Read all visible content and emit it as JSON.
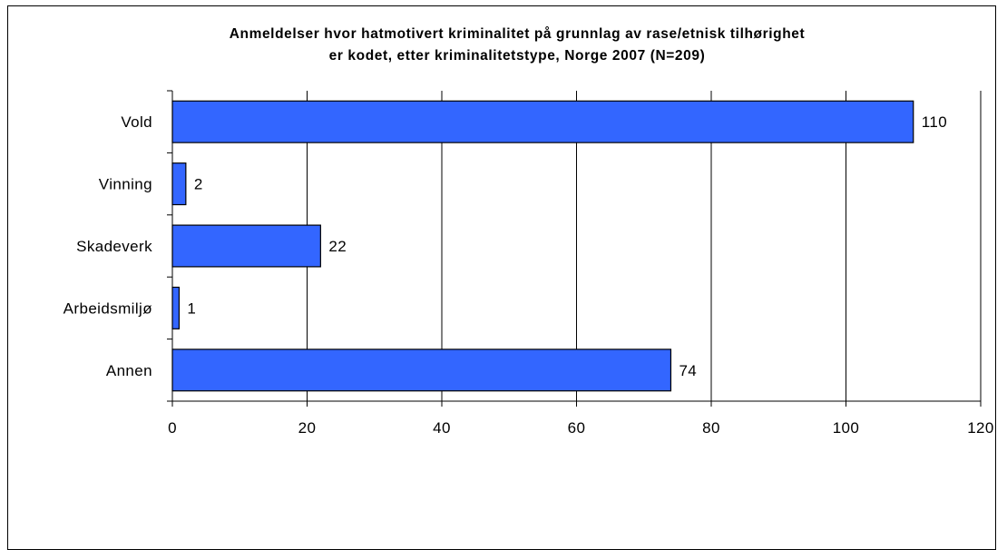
{
  "chart_data": {
    "type": "bar",
    "orientation": "horizontal",
    "title_lines": [
      "Anmeldelser hvor hatmotivert kriminalitet på grunnlag av rase/etnisk tilhørighet",
      "er kodet, etter kriminalitetstype, Norge 2007 (N=209)"
    ],
    "categories": [
      "Vold",
      "Vinning",
      "Skadeverk",
      "Arbeidsmiljø",
      "Annen"
    ],
    "values": [
      110,
      2,
      22,
      1,
      74
    ],
    "value_labels": [
      "110",
      "2",
      "22",
      "1",
      "74"
    ],
    "xlim": [
      0,
      120
    ],
    "xticks": [
      0,
      20,
      40,
      60,
      80,
      100,
      120
    ],
    "xtick_labels": [
      "0",
      "20",
      "40",
      "60",
      "80",
      "100",
      "120"
    ],
    "xlabel": "",
    "ylabel": "",
    "grid": "vertical",
    "legend": "none",
    "bar_color": "#3366ff",
    "bar_edge_color": "#000000"
  }
}
